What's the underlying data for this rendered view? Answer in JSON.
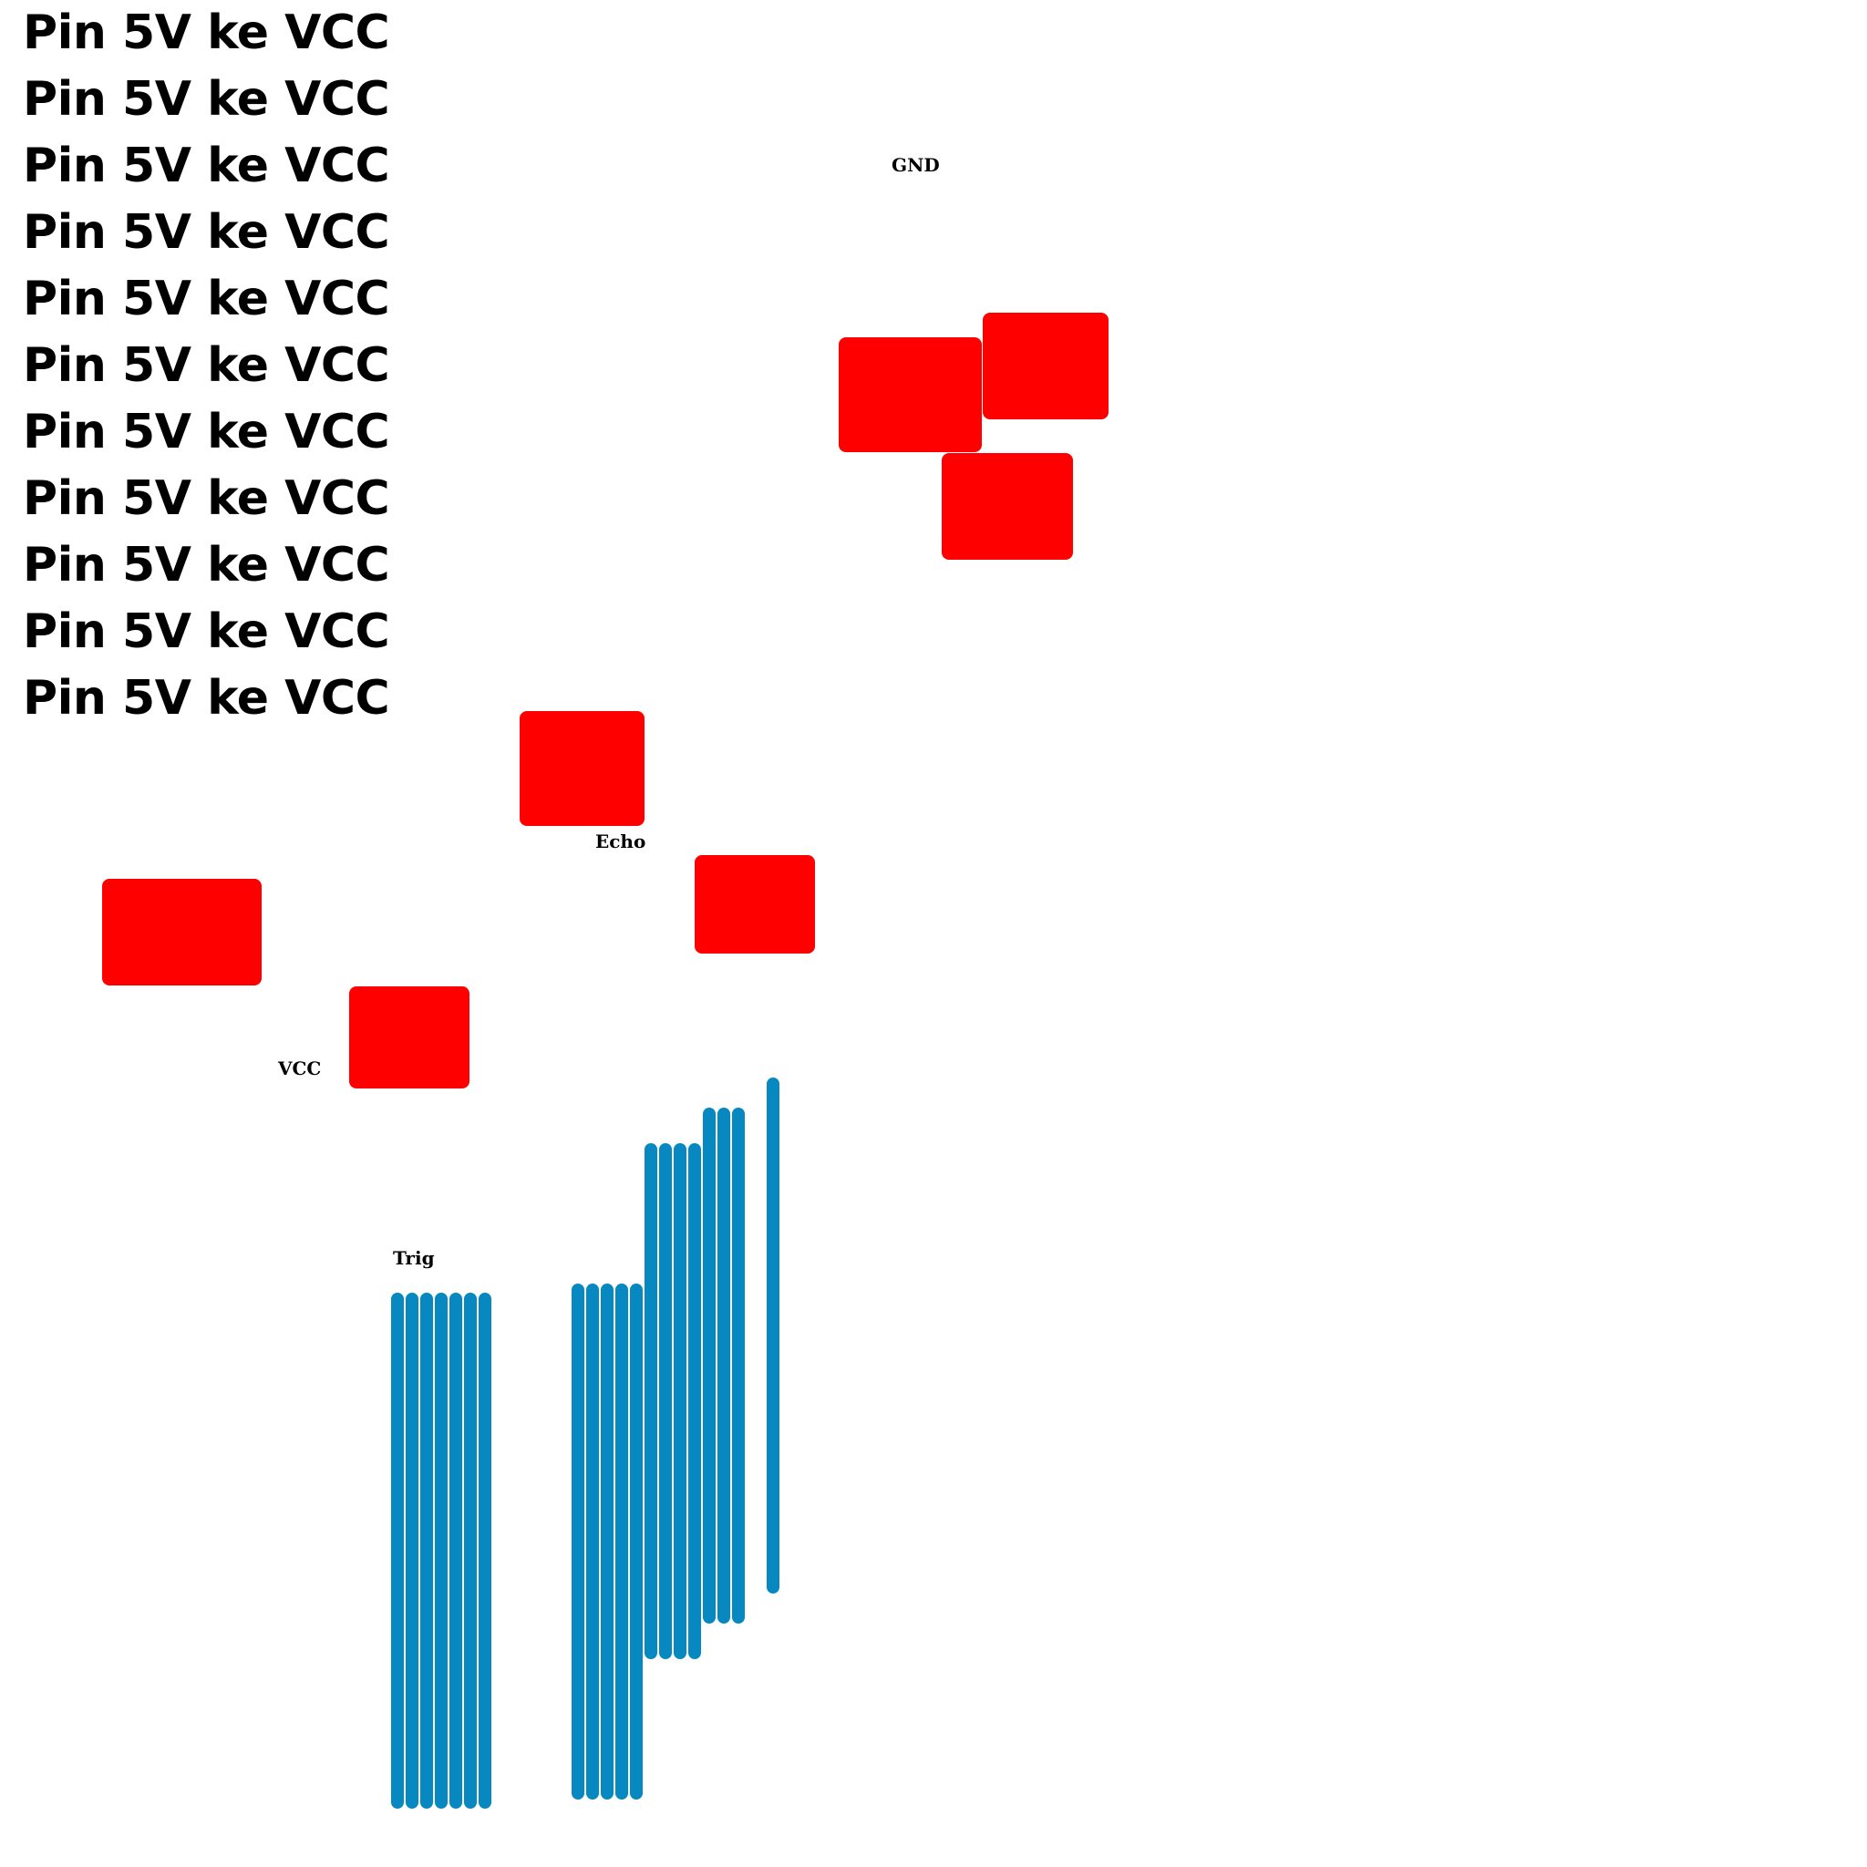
{
  "heading": {
    "lines": [
      "Pin 5V ke VCC",
      "Pin 5V ke VCC",
      "Pin 5V ke VCC",
      "Pin 5V ke VCC",
      "Pin 5V ke VCC",
      "Pin 5V ke VCC",
      "Pin 5V ke VCC",
      "Pin 5V ke VCC",
      "Pin 5V ke VCC",
      "Pin 5V ke VCC",
      "Pin 5V ke VCC"
    ]
  },
  "pins": {
    "gnd": "GND",
    "echo": "Echo",
    "vcc": "VCC",
    "trig": "Trig"
  },
  "colors": {
    "pad": "#ff0000",
    "wire": "#0788c0",
    "text": "#000000"
  }
}
